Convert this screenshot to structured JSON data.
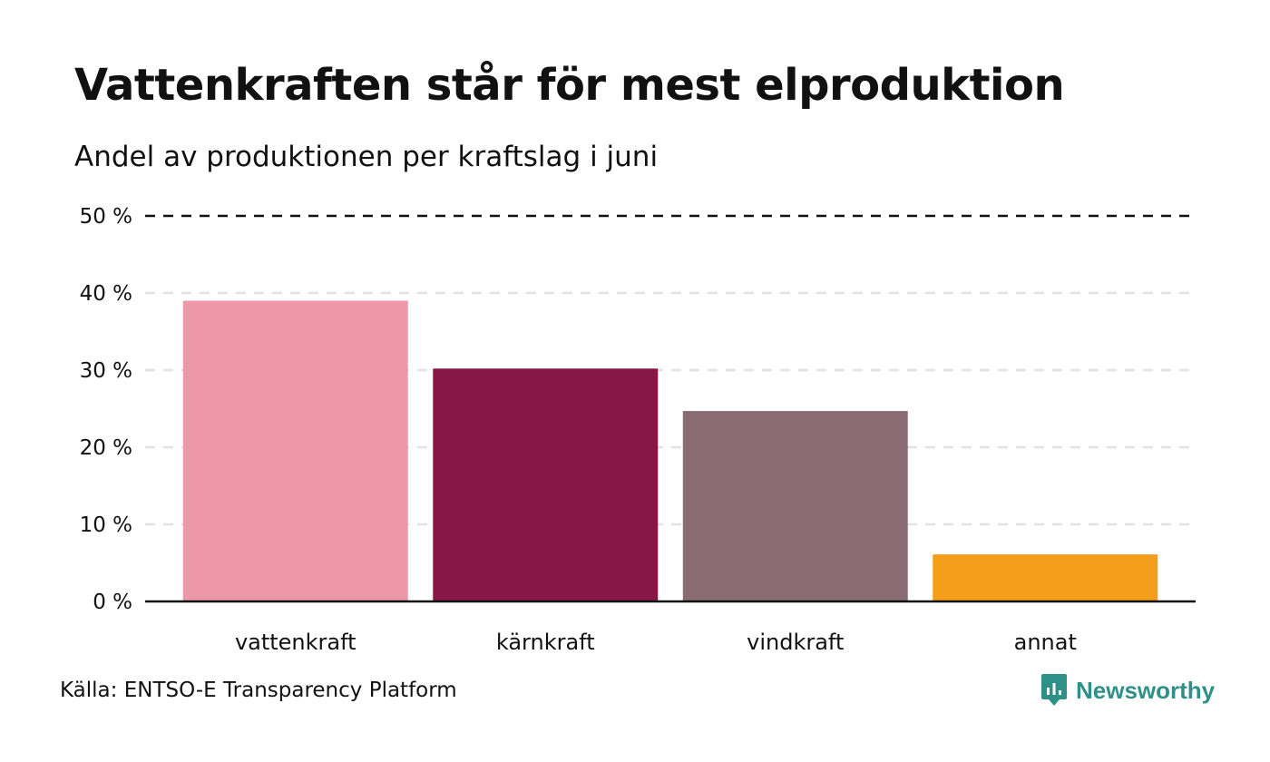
{
  "title": "Vattenkraften står för mest elproduktion",
  "subtitle": "Andel av produktionen per kraftslag i juni",
  "source": "Källa: ENTSO-E Transparency Platform",
  "brand": {
    "name": "Newsworthy",
    "icon": "newsworthy-logo-icon",
    "color": "#2e9088"
  },
  "chart_data": {
    "type": "bar",
    "title": "Vattenkraften står för mest elproduktion",
    "subtitle": "Andel av produktionen per kraftslag i juni",
    "categories": [
      "vattenkraft",
      "kärnkraft",
      "vindkraft",
      "annat"
    ],
    "values": [
      39,
      30.2,
      24.7,
      6.1
    ],
    "colors": [
      "#ee97a7",
      "#861747",
      "#8b6c75",
      "#f59e1b"
    ],
    "unit": "%",
    "ylim": [
      0,
      50
    ],
    "yticks": [
      0,
      10,
      20,
      30,
      40,
      50
    ],
    "ytick_labels": [
      "0 %",
      "10 %",
      "20 %",
      "30 %",
      "40 %",
      "50 %"
    ],
    "grid": true,
    "top_gridline_style": "dashed-black",
    "xlabel": "",
    "ylabel": ""
  }
}
